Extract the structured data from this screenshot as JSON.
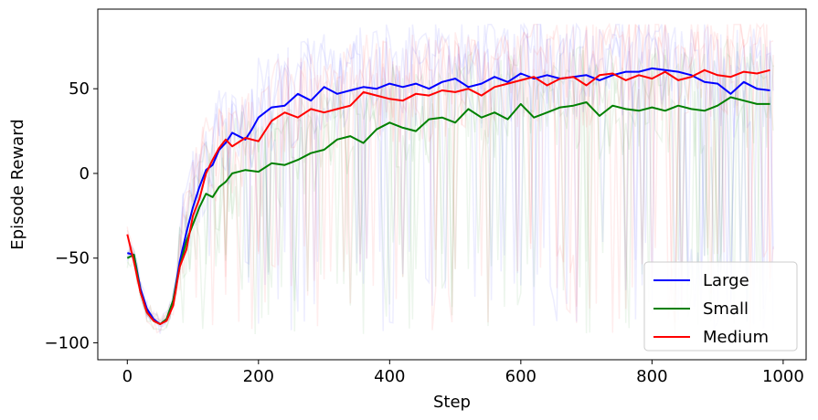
{
  "chart_data": {
    "type": "line",
    "title": "",
    "xlabel": "Step",
    "ylabel": "Episode Reward",
    "xlim": [
      -45,
      1035
    ],
    "ylim": [
      -110,
      97
    ],
    "xticks": [
      0,
      200,
      400,
      600,
      800,
      1000
    ],
    "yticks": [
      -100,
      -50,
      0,
      50
    ],
    "xtick_labels": [
      "0",
      "200",
      "400",
      "600",
      "800",
      "1000"
    ],
    "ytick_labels": [
      "−100",
      "−50",
      "0",
      "50"
    ],
    "grid": false,
    "legend_position": "bottom-right",
    "series": [
      {
        "name": "Large",
        "color": "#0000ff",
        "x": [
          0,
          10,
          20,
          30,
          40,
          50,
          60,
          70,
          80,
          90,
          100,
          110,
          120,
          130,
          140,
          150,
          160,
          170,
          180,
          190,
          200,
          220,
          240,
          260,
          280,
          300,
          320,
          340,
          360,
          380,
          400,
          420,
          440,
          460,
          480,
          500,
          520,
          540,
          560,
          580,
          600,
          620,
          640,
          660,
          680,
          700,
          720,
          740,
          760,
          780,
          800,
          820,
          840,
          860,
          880,
          900,
          920,
          940,
          960,
          980
        ],
        "y": [
          -47,
          -48,
          -68,
          -80,
          -86,
          -89,
          -86,
          -75,
          -52,
          -35,
          -20,
          -8,
          2,
          5,
          14,
          18,
          24,
          22,
          20,
          26,
          33,
          39,
          40,
          47,
          43,
          51,
          47,
          49,
          51,
          50,
          53,
          51,
          53,
          50,
          54,
          56,
          51,
          53,
          57,
          54,
          59,
          56,
          58,
          56,
          57,
          58,
          55,
          58,
          60,
          60,
          62,
          61,
          60,
          58,
          54,
          53,
          47,
          54,
          50,
          49
        ]
      },
      {
        "name": "Small",
        "color": "#008000",
        "x": [
          0,
          10,
          20,
          30,
          40,
          50,
          60,
          70,
          80,
          90,
          100,
          110,
          120,
          130,
          140,
          150,
          160,
          180,
          200,
          220,
          240,
          260,
          280,
          300,
          320,
          340,
          360,
          380,
          400,
          420,
          440,
          460,
          480,
          500,
          520,
          540,
          560,
          580,
          600,
          620,
          640,
          660,
          680,
          700,
          720,
          740,
          760,
          780,
          800,
          820,
          840,
          860,
          880,
          900,
          920,
          940,
          960,
          980
        ],
        "y": [
          -50,
          -48,
          -70,
          -82,
          -87,
          -89,
          -86,
          -75,
          -55,
          -40,
          -30,
          -20,
          -12,
          -14,
          -8,
          -5,
          0,
          2,
          1,
          6,
          5,
          8,
          12,
          14,
          20,
          22,
          18,
          26,
          30,
          27,
          25,
          32,
          33,
          30,
          38,
          33,
          36,
          32,
          41,
          33,
          36,
          39,
          40,
          42,
          34,
          40,
          38,
          37,
          39,
          37,
          40,
          38,
          37,
          40,
          45,
          43,
          41,
          41
        ]
      },
      {
        "name": "Medium",
        "color": "#ff0000",
        "x": [
          0,
          10,
          20,
          30,
          40,
          50,
          60,
          70,
          80,
          90,
          100,
          110,
          120,
          130,
          140,
          150,
          160,
          180,
          200,
          220,
          240,
          260,
          280,
          300,
          320,
          340,
          360,
          380,
          400,
          420,
          440,
          460,
          480,
          500,
          520,
          540,
          560,
          580,
          600,
          620,
          640,
          660,
          680,
          700,
          720,
          740,
          760,
          780,
          800,
          820,
          840,
          860,
          880,
          900,
          920,
          940,
          960,
          980
        ],
        "y": [
          -36,
          -52,
          -70,
          -82,
          -87,
          -89,
          -87,
          -78,
          -55,
          -45,
          -25,
          -15,
          0,
          8,
          15,
          20,
          16,
          21,
          19,
          31,
          36,
          33,
          38,
          36,
          38,
          40,
          48,
          46,
          44,
          43,
          47,
          46,
          49,
          48,
          50,
          46,
          51,
          53,
          55,
          57,
          52,
          56,
          57,
          52,
          58,
          59,
          55,
          58,
          56,
          60,
          55,
          57,
          61,
          58,
          57,
          60,
          59,
          61
        ]
      }
    ]
  }
}
